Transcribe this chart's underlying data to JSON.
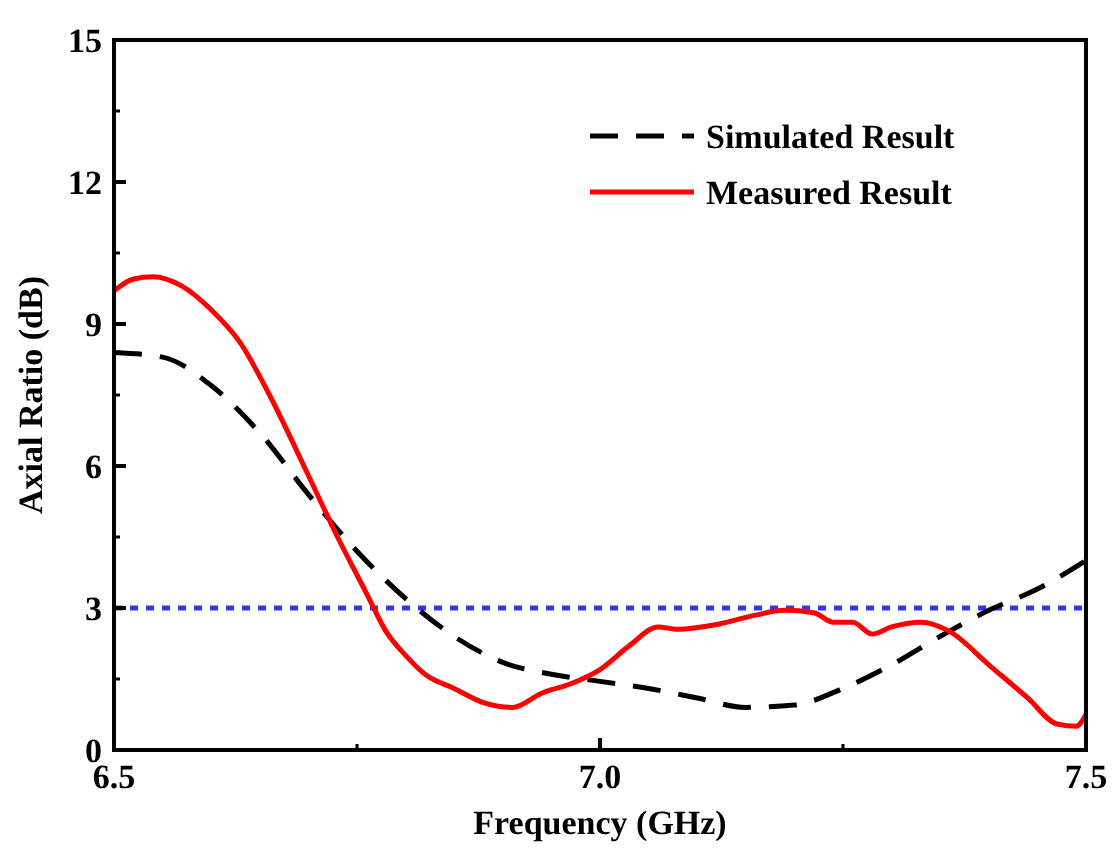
{
  "chart_data": {
    "type": "line",
    "xlabel": "Frequency (GHz)",
    "ylabel": "Axial Ratio (dB)",
    "xlim": [
      6.5,
      7.5
    ],
    "ylim": [
      0,
      15
    ],
    "xticks": [
      {
        "value": 6.5,
        "label": "6.5"
      },
      {
        "value": 7,
        "label": "7.0"
      },
      {
        "value": 7.5,
        "label": "7.5"
      }
    ],
    "yticks": [
      0,
      3,
      6,
      9,
      12,
      15
    ],
    "grid": false,
    "legend": "top right",
    "series": [
      {
        "name": "Simulated Result",
        "color": "#000000",
        "line_style": "dashed",
        "x": [
          6.5,
          6.55,
          6.6,
          6.65,
          6.7,
          6.75,
          6.8,
          6.85,
          6.9,
          6.95,
          7.0,
          7.05,
          7.1,
          7.15,
          7.2,
          7.25,
          7.3,
          7.35,
          7.4,
          7.45,
          7.5
        ],
        "values": [
          8.4,
          8.3,
          7.7,
          6.7,
          5.4,
          4.2,
          3.2,
          2.4,
          1.85,
          1.6,
          1.45,
          1.3,
          1.1,
          0.9,
          0.95,
          1.3,
          1.8,
          2.4,
          2.95,
          3.4,
          4.0
        ]
      },
      {
        "name": "Measured Result",
        "color": "#ff0000",
        "line_style": "solid",
        "x": [
          6.5,
          6.52,
          6.54,
          6.57,
          6.6,
          6.63,
          6.66,
          6.7,
          6.73,
          6.76,
          6.78,
          6.8,
          6.82,
          6.85,
          6.88,
          6.91,
          6.94,
          6.97,
          7.0,
          7.03,
          7.06,
          7.08,
          7.12,
          7.16,
          7.19,
          7.22,
          7.24,
          7.26,
          7.28,
          7.3,
          7.33,
          7.36,
          7.4,
          7.44,
          7.47,
          7.49,
          7.5
        ],
        "values": [
          9.7,
          9.95,
          10.0,
          9.8,
          9.3,
          8.6,
          7.5,
          5.8,
          4.5,
          3.3,
          2.5,
          2.0,
          1.6,
          1.3,
          1.0,
          0.9,
          1.2,
          1.4,
          1.7,
          2.2,
          2.6,
          2.55,
          2.65,
          2.85,
          2.95,
          2.9,
          2.7,
          2.7,
          2.45,
          2.6,
          2.7,
          2.5,
          1.8,
          1.1,
          0.55,
          0.5,
          0.75
        ]
      }
    ],
    "ref_lines": [
      {
        "axis": "y",
        "value": 3,
        "color": "#3333ff",
        "line_style": "dotted"
      }
    ]
  }
}
